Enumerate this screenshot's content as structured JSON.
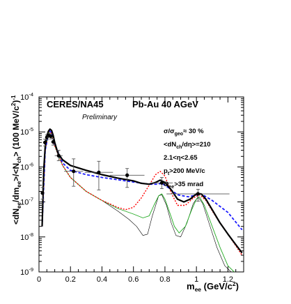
{
  "chart_data": {
    "type": "line",
    "title": "CERES/NA45",
    "subtitle": "Pb-Au 40 AGeV",
    "annotation_preliminary": "Preliminary",
    "conditions": [
      "σ/σgeo≈ 30 %",
      "<dNch/dη>=210",
      "2.1<η<2.65",
      "pt>200 MeV/c",
      "Θee>35 mrad"
    ],
    "xlabel": "mee (GeV/c2)",
    "ylabel": "<dNee/dmee>/<Nch> (100 MeV/c2)-1",
    "xlim": [
      0,
      1.3
    ],
    "ylim": [
      1e-09,
      0.0001
    ],
    "yscale": "log",
    "x_ticks": [
      "0",
      "0.2",
      "0.4",
      "0.6",
      "0.8",
      "1",
      "1.2"
    ],
    "y_ticks": [
      "10-9",
      "10-8",
      "10-7",
      "10-6",
      "10-5",
      "10-4"
    ],
    "grid": false,
    "series": [
      {
        "color": "#000000",
        "style": "solid-thick",
        "points": [
          [
            0.02,
            2e-08
          ],
          [
            0.03,
            8e-07
          ],
          [
            0.04,
            4e-06
          ],
          [
            0.05,
            8e-06
          ],
          [
            0.06,
            1.05e-05
          ],
          [
            0.07,
            1.2e-05
          ],
          [
            0.08,
            1.1e-05
          ],
          [
            0.09,
            8e-06
          ],
          [
            0.1,
            5e-06
          ],
          [
            0.12,
            2.5e-06
          ],
          [
            0.15,
            1.6e-06
          ],
          [
            0.2,
            1.1e-06
          ],
          [
            0.3,
            8e-07
          ],
          [
            0.4,
            6e-07
          ],
          [
            0.5,
            4.8e-07
          ],
          [
            0.6,
            4e-07
          ],
          [
            0.65,
            3.4e-07
          ],
          [
            0.7,
            3.2e-07
          ],
          [
            0.74,
            3.6e-07
          ],
          [
            0.77,
            4.2e-07
          ],
          [
            0.8,
            3.6e-07
          ],
          [
            0.84,
            2.2e-07
          ],
          [
            0.88,
            1.2e-07
          ],
          [
            0.92,
            1e-07
          ],
          [
            0.96,
            1.2e-07
          ],
          [
            1.0,
            1.7e-07
          ],
          [
            1.03,
            1.7e-07
          ],
          [
            1.06,
            1.2e-07
          ],
          [
            1.1,
            6e-08
          ],
          [
            1.15,
            2.5e-08
          ],
          [
            1.2,
            1.2e-08
          ],
          [
            1.25,
            6e-09
          ],
          [
            1.29,
            3.5e-09
          ]
        ]
      },
      {
        "color": "#1a1aff",
        "style": "dashed",
        "points": [
          [
            0.02,
            2e-08
          ],
          [
            0.04,
            3e-06
          ],
          [
            0.06,
            9e-06
          ],
          [
            0.07,
            1.05e-05
          ],
          [
            0.08,
            9.5e-06
          ],
          [
            0.1,
            4.5e-06
          ],
          [
            0.15,
            1.3e-06
          ],
          [
            0.2,
            8e-07
          ],
          [
            0.3,
            6e-07
          ],
          [
            0.4,
            5e-07
          ],
          [
            0.5,
            4.3e-07
          ],
          [
            0.6,
            3.7e-07
          ],
          [
            0.7,
            3.2e-07
          ],
          [
            0.75,
            3.2e-07
          ],
          [
            0.78,
            3.4e-07
          ],
          [
            0.82,
            2.6e-07
          ],
          [
            0.88,
            1.6e-07
          ],
          [
            0.95,
            1.4e-07
          ],
          [
            1.0,
            1.6e-07
          ],
          [
            1.03,
            1.7e-07
          ],
          [
            1.1,
            1.1e-07
          ],
          [
            1.2,
            5e-08
          ],
          [
            1.29,
            1.6e-08
          ]
        ]
      },
      {
        "color": "#ff0000",
        "style": "dash-dot",
        "points": [
          [
            0.02,
            2e-08
          ],
          [
            0.04,
            3e-06
          ],
          [
            0.06,
            9e-06
          ],
          [
            0.07,
            1.05e-05
          ],
          [
            0.08,
            9e-06
          ],
          [
            0.1,
            4e-06
          ],
          [
            0.15,
            1.1e-06
          ],
          [
            0.2,
            5e-07
          ],
          [
            0.3,
            2e-07
          ],
          [
            0.4,
            1.1e-07
          ],
          [
            0.5,
            7e-08
          ],
          [
            0.55,
            6e-08
          ],
          [
            0.6,
            7e-08
          ],
          [
            0.65,
            1.3e-07
          ],
          [
            0.7,
            3e-07
          ],
          [
            0.74,
            6e-07
          ],
          [
            0.77,
            7.5e-07
          ],
          [
            0.8,
            5.5e-07
          ],
          [
            0.84,
            1.8e-07
          ],
          [
            0.88,
            8e-08
          ],
          [
            0.93,
            8e-08
          ],
          [
            0.98,
            1.3e-07
          ],
          [
            1.02,
            1.6e-07
          ],
          [
            1.06,
            1.1e-07
          ],
          [
            1.12,
            4e-08
          ],
          [
            1.2,
            1.2e-08
          ],
          [
            1.29,
            3e-09
          ]
        ]
      },
      {
        "color": "#22aa22",
        "style": "solid-thin",
        "points": [
          [
            0.02,
            2e-08
          ],
          [
            0.04,
            3e-06
          ],
          [
            0.06,
            9e-06
          ],
          [
            0.07,
            1.05e-05
          ],
          [
            0.08,
            9e-06
          ],
          [
            0.1,
            4e-06
          ],
          [
            0.15,
            1.1e-06
          ],
          [
            0.2,
            5e-07
          ],
          [
            0.3,
            2e-07
          ],
          [
            0.4,
            1.1e-07
          ],
          [
            0.5,
            6.5e-08
          ],
          [
            0.6,
            4.5e-08
          ],
          [
            0.66,
            3.5e-08
          ],
          [
            0.7,
            4e-08
          ],
          [
            0.73,
            8e-08
          ],
          [
            0.76,
            1.5e-07
          ],
          [
            0.78,
            1.7e-07
          ],
          [
            0.8,
            1.2e-07
          ],
          [
            0.83,
            5e-08
          ],
          [
            0.86,
            2e-08
          ],
          [
            0.89,
            1.3e-08
          ],
          [
            0.93,
            2e-08
          ],
          [
            0.97,
            6e-08
          ],
          [
            1.0,
            1.2e-07
          ],
          [
            1.02,
            1.4e-07
          ],
          [
            1.05,
            8e-08
          ],
          [
            1.1,
            2e-08
          ],
          [
            1.15,
            5e-09
          ],
          [
            1.2,
            1.5e-09
          ],
          [
            1.24,
            1e-09
          ]
        ]
      },
      {
        "color": "#000000",
        "style": "solid-hairline",
        "points": [
          [
            0.02,
            2e-08
          ],
          [
            0.04,
            3e-06
          ],
          [
            0.06,
            9e-06
          ],
          [
            0.07,
            1.05e-05
          ],
          [
            0.08,
            9e-06
          ],
          [
            0.1,
            4e-06
          ],
          [
            0.15,
            1.1e-06
          ],
          [
            0.2,
            5e-07
          ],
          [
            0.3,
            2e-07
          ],
          [
            0.4,
            1.1e-07
          ],
          [
            0.5,
            5.5e-08
          ],
          [
            0.57,
            3.2e-08
          ],
          [
            0.62,
            2e-08
          ],
          [
            0.66,
            1.1e-08
          ],
          [
            0.69,
            1.2e-08
          ],
          [
            0.72,
            4e-08
          ],
          [
            0.76,
            1.5e-07
          ],
          [
            0.78,
            1.6e-07
          ],
          [
            0.81,
            8e-08
          ],
          [
            0.84,
            2.5e-08
          ],
          [
            0.87,
            1.1e-08
          ],
          [
            0.9,
            1e-08
          ],
          [
            0.94,
            2.5e-08
          ],
          [
            0.98,
            9e-08
          ],
          [
            1.01,
            1.4e-07
          ],
          [
            1.04,
            9e-08
          ],
          [
            1.08,
            2.5e-08
          ],
          [
            1.13,
            5e-09
          ],
          [
            1.18,
            1.5e-09
          ],
          [
            1.22,
            1e-09
          ]
        ]
      }
    ],
    "data_points": [
      {
        "x": 0.022,
        "y": 1.8e-07,
        "xerr": 0.004,
        "ylo": 1.2e-07,
        "yhi": 2.6e-07
      },
      {
        "x": 0.038,
        "y": 5e-06,
        "xerr": 0.005,
        "ylo": 4e-06,
        "yhi": 6.2e-06
      },
      {
        "x": 0.05,
        "y": 7e-06,
        "xerr": 0.005,
        "ylo": 6e-06,
        "yhi": 8.2e-06
      },
      {
        "x": 0.062,
        "y": 8e-06,
        "xerr": 0.005,
        "ylo": 7e-06,
        "yhi": 9.2e-06
      },
      {
        "x": 0.075,
        "y": 7.5e-06,
        "xerr": 0.006,
        "ylo": 6.3e-06,
        "yhi": 8.8e-06
      },
      {
        "x": 0.09,
        "y": 5.2e-06,
        "xerr": 0.007,
        "ylo": 4.2e-06,
        "yhi": 6.5e-06
      },
      {
        "x": 0.125,
        "y": 2.1e-06,
        "xerr": 0.025,
        "ylo": 1.5e-06,
        "yhi": 3e-06
      },
      {
        "x": 0.22,
        "y": 7.5e-07,
        "xerr": 0.06,
        "ylo": 2.8e-07,
        "yhi": 1.7e-06
      },
      {
        "x": 0.38,
        "y": 7e-07,
        "xerr": 0.09,
        "ylo": 2.2e-07,
        "yhi": 1.45e-06
      },
      {
        "x": 0.56,
        "y": 5.8e-07,
        "xerr": 0.11,
        "ylo": 2.6e-07,
        "yhi": 9e-07
      },
      {
        "x": 0.78,
        "y": 3.5e-07,
        "xerr": 0.07,
        "ylo": 2.4e-07,
        "yhi": 5e-07
      },
      {
        "x": 1.01,
        "y": 1.7e-07,
        "xerr": 0.2,
        "ylo": 1.05e-07,
        "yhi": 2.3e-07
      }
    ]
  }
}
